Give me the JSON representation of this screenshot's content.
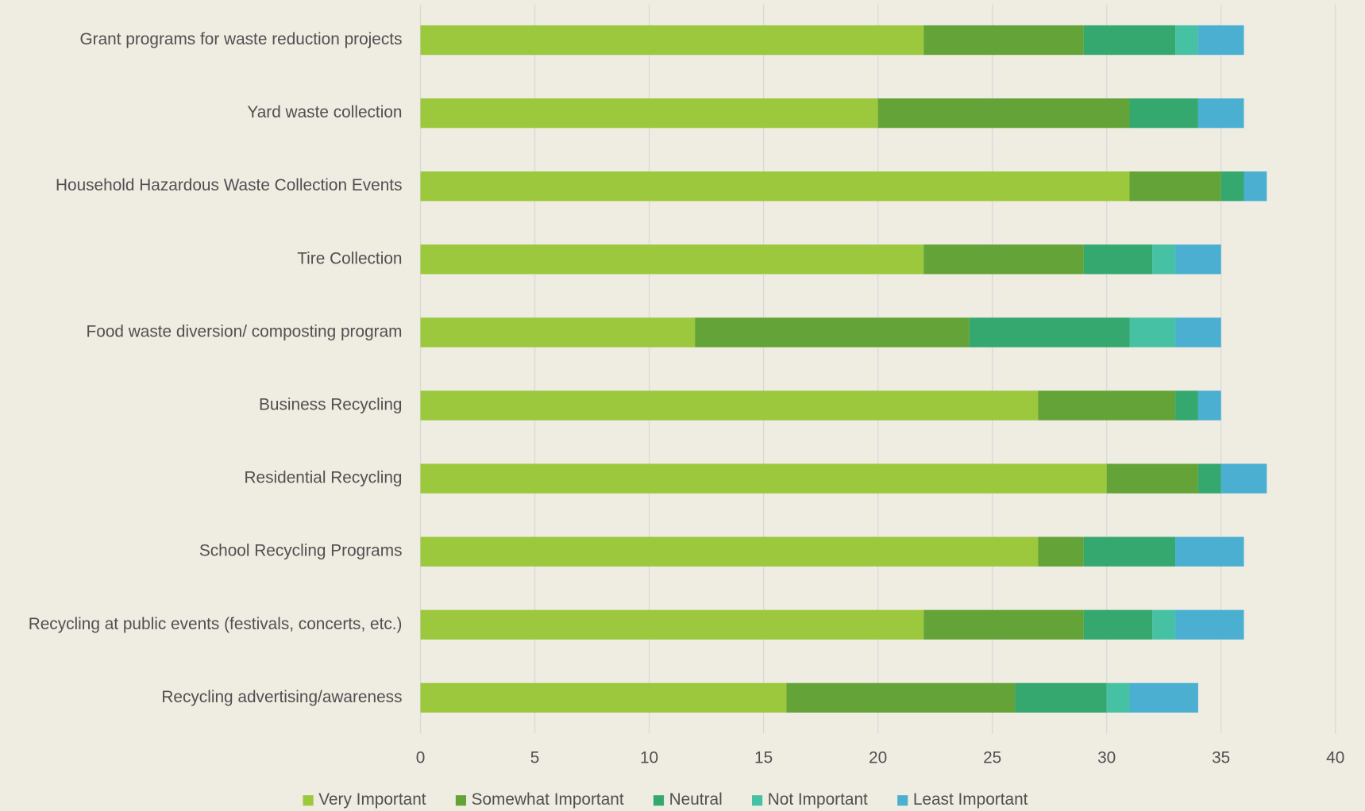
{
  "chart_data": {
    "type": "stacked-bar-horizontal",
    "categories": [
      "Grant programs for waste reduction projects",
      "Yard waste collection",
      "Household Hazardous Waste Collection Events",
      "Tire Collection",
      "Food waste diversion/ composting program",
      "Business Recycling",
      "Residential Recycling",
      "School Recycling Programs",
      "Recycling at public events (festivals, concerts, etc.)",
      "Recycling advertising/awareness"
    ],
    "series": [
      {
        "name": "Very Important",
        "color": "#9bc83c",
        "values": [
          22,
          20,
          31,
          22,
          12,
          27,
          30,
          27,
          22,
          16
        ]
      },
      {
        "name": "Somewhat Important",
        "color": "#64a338",
        "values": [
          7,
          11,
          4,
          7,
          12,
          6,
          4,
          2,
          7,
          10
        ]
      },
      {
        "name": "Neutral",
        "color": "#35a86f",
        "values": [
          4,
          3,
          1,
          3,
          7,
          1,
          1,
          4,
          3,
          4
        ]
      },
      {
        "name": "Not Important",
        "color": "#47c1a3",
        "values": [
          1,
          0,
          0,
          1,
          2,
          0,
          0,
          0,
          1,
          1
        ]
      },
      {
        "name": "Least Important",
        "color": "#4bafd1",
        "values": [
          2,
          2,
          1,
          2,
          2,
          1,
          2,
          3,
          3,
          3
        ]
      }
    ],
    "xlim": [
      0,
      40
    ],
    "xticks": [
      0,
      5,
      10,
      15,
      20,
      25,
      30,
      35,
      40
    ],
    "grid": true,
    "legend": "bottom"
  }
}
